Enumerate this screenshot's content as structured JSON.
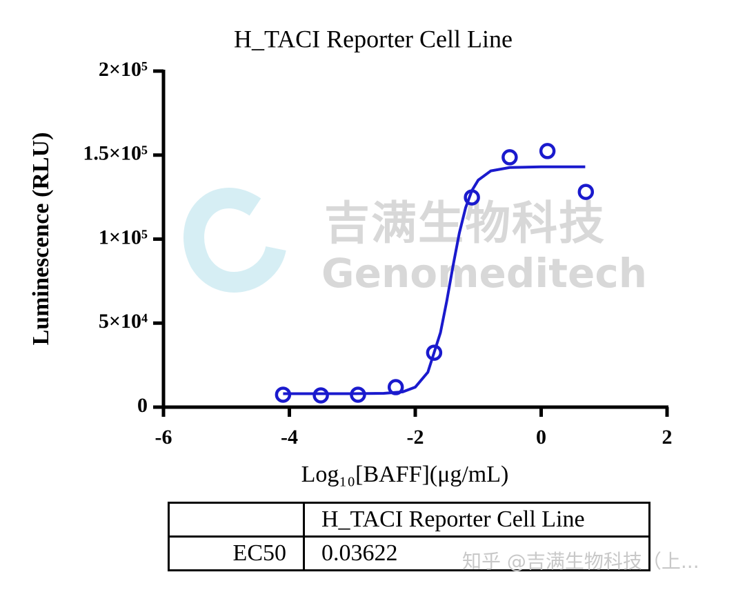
{
  "chart_data": {
    "type": "scatter",
    "title": "H_TACI Reporter Cell Line",
    "x_label": "Log₁₀[BAFF](μg/mL)",
    "y_label": "Luminescence (RLU)",
    "x": [
      -4.1,
      -3.5,
      -2.91,
      -2.31,
      -1.7,
      -1.1,
      -0.5,
      0.1,
      0.71
    ],
    "values": [
      7400,
      7000,
      7400,
      11900,
      32400,
      124800,
      148700,
      152400,
      128100
    ],
    "color": "#1a1acd",
    "fit": {
      "x": [
        -4.1,
        -3,
        -2.5,
        -2.2,
        -2,
        -1.8,
        -1.6,
        -1.5,
        -1.4,
        -1.3,
        -1.2,
        -1.1,
        -1,
        -0.8,
        -0.5,
        0,
        0.7
      ],
      "values": [
        8000,
        8000,
        8200,
        9100,
        11900,
        20800,
        44300,
        63100,
        84100,
        103600,
        118700,
        128900,
        135100,
        140600,
        142600,
        143000,
        143000
      ]
    },
    "xlim": [
      -6,
      2
    ],
    "xticks": [
      -6,
      -4,
      -2,
      0,
      2
    ],
    "ylim": [
      0,
      200000
    ],
    "yticks": [
      0,
      {
        "value": 50000,
        "label": "5×10⁴"
      },
      {
        "value": 100000,
        "label": "1×10⁵"
      },
      {
        "value": 150000,
        "label": "1.5×10⁵"
      },
      {
        "value": 200000,
        "label": "2×10⁵"
      }
    ]
  },
  "table": {
    "columns": [
      "H_TACI Reporter Cell Line"
    ],
    "rows": [
      [
        "EC50",
        "0.03622"
      ]
    ]
  },
  "watermark": {
    "cn": "吉满生物科技",
    "en": "Genomeditech",
    "footer": "知乎 @吉满生物科技（上..."
  }
}
